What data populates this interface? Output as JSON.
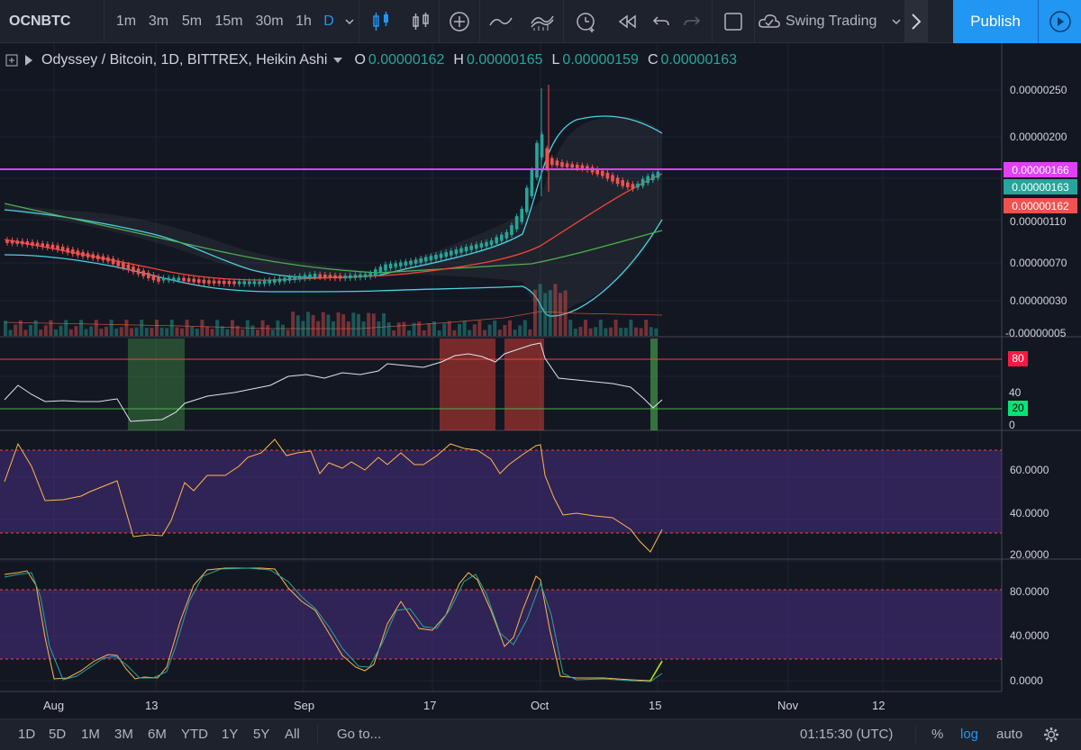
{
  "toolbar": {
    "symbol": "OCNBTC",
    "intervals": [
      "1m",
      "3m",
      "5m",
      "15m",
      "30m",
      "1h",
      "D"
    ],
    "active_interval": "D",
    "layout_name": "Swing Trading",
    "publish_label": "Publish"
  },
  "legend": {
    "title": "Odyssey / Bitcoin, 1D, BITTREX, Heikin Ashi",
    "ohlc": [
      {
        "label": "O",
        "value": "0.00000162"
      },
      {
        "label": "H",
        "value": "0.00000165"
      },
      {
        "label": "L",
        "value": "0.00000159"
      },
      {
        "label": "C",
        "value": "0.00000163"
      }
    ]
  },
  "price_axis": {
    "ticks": [
      "0.00000250",
      "0.00000200",
      "0.00000110",
      "0.00000070",
      "0.00000030",
      "-0.00000005"
    ],
    "tags": [
      {
        "value": "0.00000166",
        "color": "#e040fb"
      },
      {
        "value": "0.00000163",
        "color": "#26a69a"
      },
      {
        "value": "0.00000162",
        "color": "#ef5350"
      }
    ]
  },
  "rsi_axis": {
    "ticks": [
      "80",
      "40",
      "20",
      "0"
    ],
    "upper": "80",
    "lower": "20"
  },
  "osc1_axis": {
    "ticks": [
      "60.0000",
      "40.0000",
      "20.0000"
    ]
  },
  "osc2_axis": {
    "ticks": [
      "80.0000",
      "40.0000",
      "0.0000"
    ]
  },
  "time_axis": {
    "labels": [
      "Aug",
      "13",
      "Sep",
      "17",
      "Oct",
      "15",
      "Nov",
      "12"
    ]
  },
  "bottombar": {
    "ranges": [
      "1D",
      "5D",
      "1M",
      "3M",
      "6M",
      "YTD",
      "1Y",
      "5Y",
      "All"
    ],
    "goto_label": "Go to...",
    "clock": "01:15:30 (UTC)",
    "percent_label": "%",
    "log_label": "log",
    "auto_label": "auto"
  },
  "colors": {
    "up": "#26a69a",
    "down": "#ef5350",
    "hline": "#e040fb",
    "accent": "#2196f3"
  }
}
